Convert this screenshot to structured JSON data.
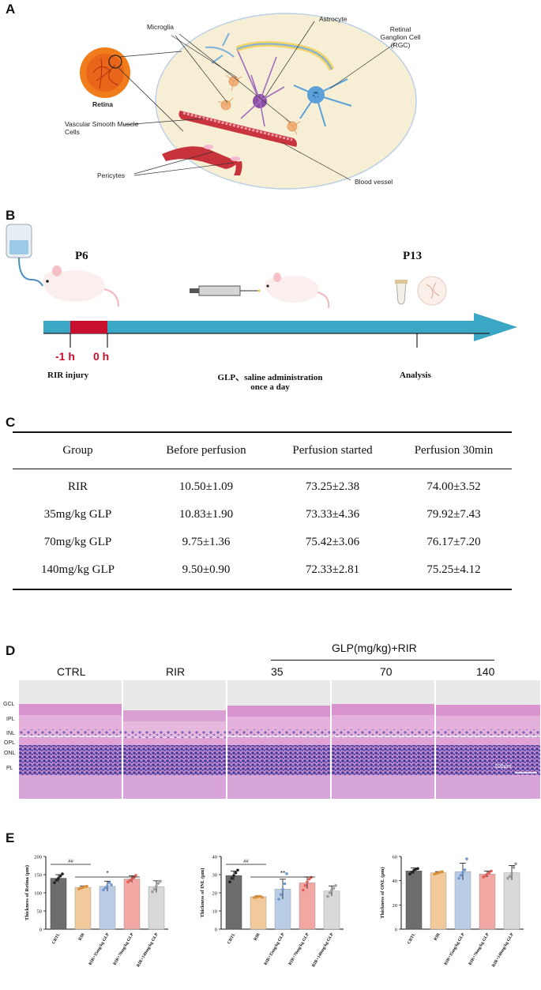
{
  "panel_a": {
    "letter": "A",
    "labels": {
      "microglia": "Microglia",
      "astrocyte": "Astrocyte",
      "rgc": "Retinal Ganglion Cell (RGC)",
      "retina": "Retina",
      "vsmc": "Vascular Smooth Muscle Cells",
      "pericytes": "Pericytes",
      "blood_vessel": "Blood vessel"
    }
  },
  "panel_b": {
    "letter": "B",
    "p6": "P6",
    "p13": "P13",
    "t_minus": "-1 h",
    "t_zero": "0 h",
    "rir_injury": "RIR injury",
    "admin_line1": "GLP、saline administration",
    "admin_line2": "once a day",
    "analysis": "Analysis",
    "colors": {
      "timeline": "#3aa7c4",
      "injury": "#c8102e"
    }
  },
  "panel_c": {
    "letter": "C",
    "columns": [
      "Group",
      "Before perfusion",
      "Perfusion started",
      "Perfusion 30min"
    ],
    "rows": [
      [
        "RIR",
        "10.50±1.09",
        "73.25±2.38",
        "74.00±3.52"
      ],
      [
        "35mg/kg GLP",
        "10.83±1.90",
        "73.33±4.36",
        "79.92±7.43"
      ],
      [
        "70mg/kg GLP",
        "9.75±1.36",
        "75.42±3.06",
        "76.17±7.20"
      ],
      [
        "140mg/kg GLP",
        "9.50±0.90",
        "72.33±2.81",
        "75.25±4.12"
      ]
    ]
  },
  "panel_d": {
    "letter": "D",
    "group_header": "GLP(mg/kg)+RIR",
    "columns": [
      "CTRL",
      "RIR",
      "35",
      "70",
      "140"
    ],
    "layers": [
      "GCL",
      "IPL",
      "INL",
      "OPL",
      "ONL",
      "PL"
    ],
    "scale": "100μm"
  },
  "panel_e": {
    "letter": "E",
    "categories": [
      "CRTL",
      "RIR",
      "RIR+35mg/kg GLP",
      "RIR+70mg/kg GLP",
      "RIR+140mg/kg GLP"
    ],
    "colors": [
      "#6d6d6d",
      "#f1c99b",
      "#b9cde6",
      "#f2a7a2",
      "#d9d9d9"
    ],
    "charts": [
      {
        "ylabel": "Thickness of Retina (μm)",
        "yticks": [
          "0",
          "50",
          "100",
          "150",
          "200"
        ],
        "sig_a": "##",
        "sig_b": "*"
      },
      {
        "ylabel": "Thickness of INL (μm)",
        "yticks": [
          "0",
          "10",
          "20",
          "30",
          "40"
        ],
        "sig_a": "##",
        "sig_b": "**"
      },
      {
        "ylabel": "Thickness of ONL (μm)",
        "yticks": [
          "0",
          "20",
          "40",
          "60"
        ],
        "sig_a": "",
        "sig_b": ""
      }
    ]
  },
  "chart_data": [
    {
      "type": "bar",
      "categories": [
        "CRTL",
        "RIR",
        "RIR+35mg/kg GLP",
        "RIR+70mg/kg GLP",
        "RIR+140mg/kg GLP"
      ],
      "values": [
        140,
        115,
        118,
        138,
        117
      ],
      "errors": [
        10,
        4,
        14,
        9,
        16
      ],
      "points": [
        [
          128,
          135,
          140,
          146,
          152
        ],
        [
          111,
          113,
          115,
          117,
          118
        ],
        [
          108,
          114,
          120,
          128,
          122
        ],
        [
          130,
          134,
          138,
          142,
          148
        ],
        [
          103,
          110,
          118,
          126,
          132
        ]
      ],
      "ylabel": "Thickness of Retina (μm)",
      "ylim": [
        0,
        200
      ]
    },
    {
      "type": "bar",
      "categories": [
        "CRTL",
        "RIR",
        "RIR+35mg/kg GLP",
        "RIR+70mg/kg GLP",
        "RIR+140mg/kg GLP"
      ],
      "values": [
        29.5,
        17.8,
        22,
        25.5,
        21
      ],
      "errors": [
        2.5,
        0.6,
        5.5,
        3.2,
        2.8
      ],
      "points": [
        [
          26,
          28,
          29.5,
          31,
          32.5
        ],
        [
          17.4,
          17.7,
          18,
          18.1,
          17.6
        ],
        [
          16.5,
          19,
          22,
          25,
          30.5
        ],
        [
          21.5,
          24,
          26,
          27.5,
          28.5
        ],
        [
          18,
          20,
          21.5,
          22.5,
          24
        ]
      ],
      "ylabel": "Thickness of INL (μm)",
      "ylim": [
        0,
        40
      ]
    },
    {
      "type": "bar",
      "categories": [
        "CRTL",
        "RIR",
        "RIR+35mg/kg GLP",
        "RIR+70mg/kg GLP",
        "RIR+140mg/kg GLP"
      ],
      "values": [
        48,
        46.5,
        47.5,
        45.5,
        46.5
      ],
      "errors": [
        2.5,
        1,
        7,
        2.5,
        6
      ],
      "points": [
        [
          45.5,
          47,
          48.5,
          49.5,
          50
        ],
        [
          45.5,
          46,
          46.5,
          47,
          47.5
        ],
        [
          42,
          44.5,
          47,
          49,
          58
        ],
        [
          43,
          44,
          45.5,
          46.5,
          48
        ],
        [
          42,
          43.5,
          45,
          51,
          54
        ]
      ],
      "ylabel": "Thickness of ONL (μm)",
      "ylim": [
        0,
        60
      ]
    }
  ]
}
